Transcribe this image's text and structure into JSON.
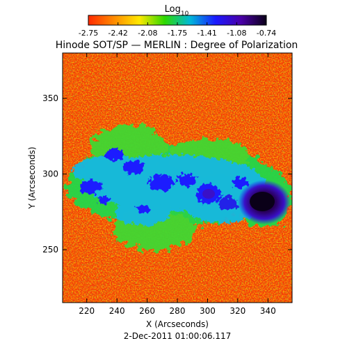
{
  "colorbar": {
    "label_main": "Log",
    "label_sub": "10",
    "ticks": [
      "-2.75",
      "-2.42",
      "-2.08",
      "-1.75",
      "-1.41",
      "-1.08",
      "-0.74"
    ],
    "colors": [
      "#ff2a00",
      "#ff8a00",
      "#ffe800",
      "#2ed800",
      "#00b8d8",
      "#1a1aff",
      "#4a00a8",
      "#0a0018"
    ]
  },
  "title": "Hinode SOT/SP — MERLIN : Degree of Polarization",
  "axes": {
    "xlabel": "X (Arcseconds)",
    "ylabel": "Y (Arcseconds)",
    "xticks": [
      "220",
      "240",
      "260",
      "280",
      "300",
      "320",
      "340"
    ],
    "yticks": [
      "250",
      "300",
      "350"
    ],
    "xlim": [
      204,
      356
    ],
    "ylim": [
      215,
      380
    ]
  },
  "timestamp": "2-Dec-2011 01:00:06.117"
}
